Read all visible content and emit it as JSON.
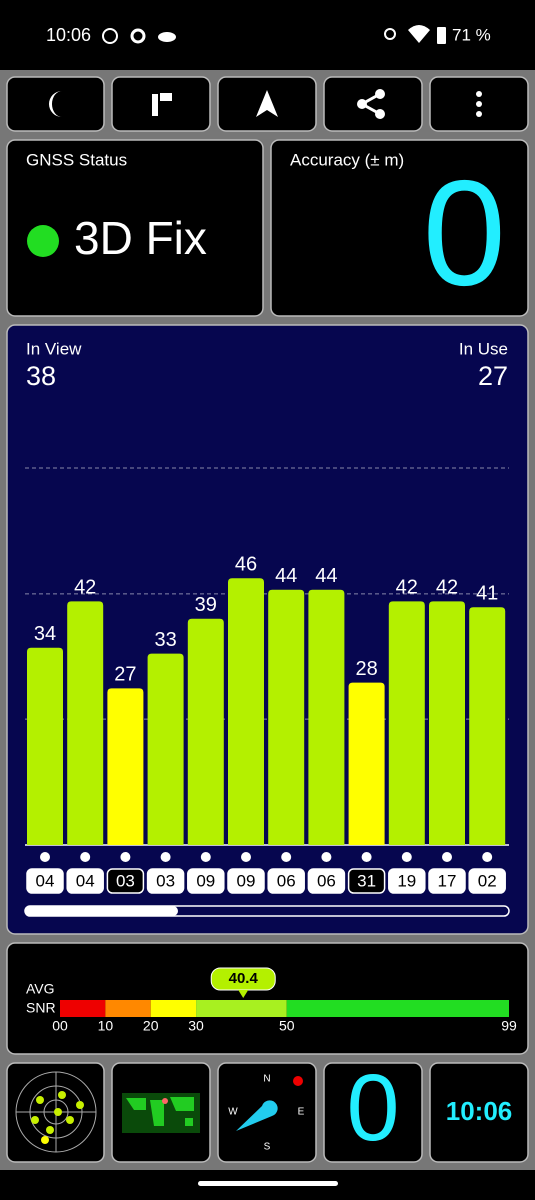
{
  "status_bar": {
    "time": "10:06",
    "battery": "71 %"
  },
  "gnss_status": {
    "title": "GNSS Status",
    "fix": "3D Fix"
  },
  "accuracy": {
    "title": "Accuracy (± m)",
    "value": 0
  },
  "signal_chart": {
    "in_view_label": "In View",
    "in_view": 38,
    "in_use_label": "In Use",
    "in_use": 27,
    "ylim": [
      0,
      65
    ],
    "gridlines": [
      21.7,
      43.3,
      65
    ],
    "bars": [
      {
        "prn": "04",
        "value": 34,
        "color": "#b4f000",
        "used": true
      },
      {
        "prn": "04",
        "value": 42,
        "color": "#b4f000",
        "used": true
      },
      {
        "prn": "03",
        "value": 27,
        "color": "#ffff00",
        "used": false
      },
      {
        "prn": "03",
        "value": 33,
        "color": "#b4f000",
        "used": true
      },
      {
        "prn": "09",
        "value": 39,
        "color": "#b4f000",
        "used": true
      },
      {
        "prn": "09",
        "value": 46,
        "color": "#b4f000",
        "used": true
      },
      {
        "prn": "06",
        "value": 44,
        "color": "#b4f000",
        "used": true
      },
      {
        "prn": "06",
        "value": 44,
        "color": "#b4f000",
        "used": true
      },
      {
        "prn": "31",
        "value": 28,
        "color": "#ffff00",
        "used": false
      },
      {
        "prn": "19",
        "value": 42,
        "color": "#b4f000",
        "used": true
      },
      {
        "prn": "17",
        "value": 42,
        "color": "#b4f000",
        "used": true
      },
      {
        "prn": "02",
        "value": 41,
        "color": "#b4f000",
        "used": true
      }
    ]
  },
  "snr": {
    "label_top": "AVG",
    "label_bottom": "SNR",
    "average": 40.4,
    "xlim": [
      0,
      99
    ],
    "ticks": [
      {
        "value": 0,
        "label": "00"
      },
      10,
      20,
      30,
      50,
      99
    ],
    "bands": [
      {
        "from": 0,
        "to": 10,
        "color": "#ee0000"
      },
      {
        "from": 10,
        "to": 20,
        "color": "#ff8800"
      },
      {
        "from": 20,
        "to": 30,
        "color": "#ffff00"
      },
      {
        "from": 30,
        "to": 50,
        "color": "#a8f020"
      },
      {
        "from": 50,
        "to": 99,
        "color": "#22dd22"
      }
    ]
  },
  "tiles": {
    "compass": {
      "n": "N",
      "e": "E",
      "s": "S",
      "w": "W"
    },
    "accuracy": 0,
    "clock": "10:06"
  }
}
